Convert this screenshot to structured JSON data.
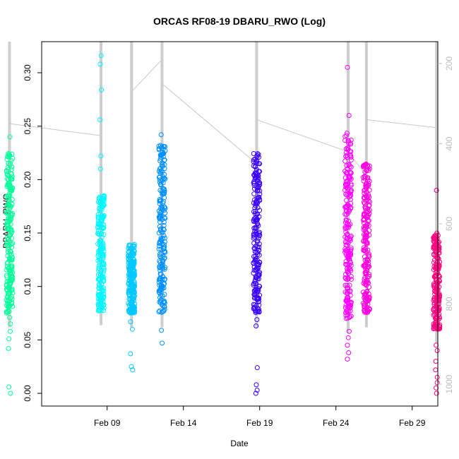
{
  "chart_data": {
    "type": "scatter",
    "title": "ORCAS RF08-19 DBARU_RWO (Log)",
    "xlabel": "Date",
    "ylabel": "DBARU_RWO",
    "x_ticks": [
      "Feb 09",
      "Feb 14",
      "Feb 19",
      "Feb 24",
      "Feb 29"
    ],
    "y_ticks": [
      "0.00",
      "0.05",
      "0.10",
      "0.15",
      "0.20",
      "0.25",
      "0.30"
    ],
    "y2_ticks": [
      "200",
      "400",
      "600",
      "800",
      "1000"
    ],
    "y2_axis": "pressure, reversed, gray",
    "ylim": [
      0,
      0.33
    ],
    "grid": false,
    "flights": [
      {
        "day": 2.6,
        "color": "#00ff99",
        "core": [
          0.075,
          0.225
        ],
        "outliers": [
          0.0,
          0.006,
          0.042,
          0.051,
          0.058,
          0.065,
          0.071,
          0.24
        ]
      },
      {
        "day": 8.6,
        "color": "#00f6ff",
        "core": [
          0.077,
          0.185
        ],
        "outliers": [
          0.21,
          0.222,
          0.256,
          0.284,
          0.308,
          0.316
        ]
      },
      {
        "day": 10.6,
        "color": "#00c8ff",
        "core": [
          0.075,
          0.14
        ],
        "outliers": [
          0.022,
          0.025,
          0.037,
          0.06,
          0.067
        ]
      },
      {
        "day": 12.6,
        "color": "#0090ff",
        "core": [
          0.075,
          0.232
        ],
        "outliers": [
          0.047,
          0.059,
          0.242
        ]
      },
      {
        "day": 18.8,
        "color": "#3a00ff",
        "core": [
          0.075,
          0.225
        ],
        "outliers": [
          0.0,
          0.003,
          0.008,
          0.024,
          0.063,
          0.069
        ]
      },
      {
        "day": 24.8,
        "color": "#ff00ff",
        "core": [
          0.07,
          0.245
        ],
        "outliers": [
          0.032,
          0.038,
          0.045,
          0.052,
          0.058,
          0.26,
          0.305
        ]
      },
      {
        "day": 26.0,
        "color": "#ff00e0",
        "core": [
          0.075,
          0.215
        ],
        "outliers": []
      },
      {
        "day": 30.6,
        "color": "#ff0080",
        "core": [
          0.06,
          0.15
        ],
        "outliers": [
          0.0,
          0.005,
          0.01,
          0.015,
          0.022,
          0.03,
          0.04,
          0.045,
          0.19
        ]
      }
    ],
    "pressure_connectors": [
      {
        "from_day": 2.6,
        "to_day": 8.6,
        "from_p": 350,
        "to_p": 380
      },
      {
        "from_day": 10.6,
        "to_day": 12.6,
        "from_p": 270,
        "to_p": 190
      },
      {
        "from_day": 12.6,
        "to_day": 18.8,
        "from_p": 250,
        "to_p": 450
      },
      {
        "from_day": 18.8,
        "to_day": 24.8,
        "from_p": 340,
        "to_p": 420
      },
      {
        "from_day": 24.8,
        "to_day": 26.0,
        "from_p": 420,
        "to_p": 480
      },
      {
        "from_day": 26.0,
        "to_day": 30.6,
        "from_p": 340,
        "to_p": 360
      }
    ]
  }
}
